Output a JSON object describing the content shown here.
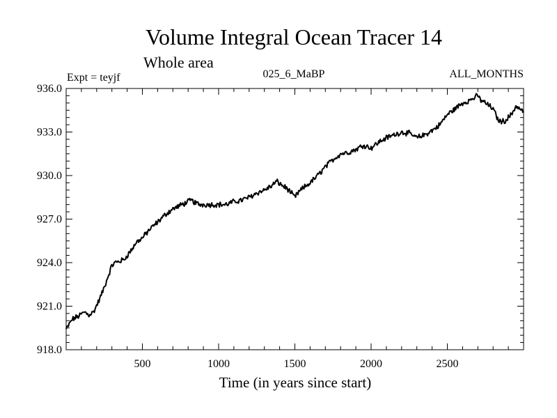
{
  "chart_data": {
    "type": "line",
    "title": "Volume Integral Ocean Tracer 14",
    "subtitle": "Whole area",
    "expt_label": "Expt = teyjf",
    "run_label": "025_6_MaBP",
    "period_label": "ALL_MONTHS",
    "xlabel": "Time (in years since start)",
    "ylabel": "",
    "xlim": [
      0,
      3000
    ],
    "ylim": [
      918.0,
      936.0
    ],
    "x_ticks": [
      500,
      1000,
      1500,
      2000,
      2500
    ],
    "x_tick_labels": [
      "500",
      "1000",
      "1500",
      "2000",
      "2500"
    ],
    "y_ticks": [
      918.0,
      921.0,
      924.0,
      927.0,
      930.0,
      933.0,
      936.0
    ],
    "y_tick_labels": [
      "918.0",
      "921.0",
      "924.0",
      "927.0",
      "930.0",
      "933.0",
      "936.0"
    ],
    "grid": false,
    "series": [
      {
        "name": "Tracer 14",
        "x": [
          0,
          40,
          80,
          120,
          150,
          180,
          220,
          250,
          280,
          300,
          320,
          350,
          380,
          400,
          430,
          460,
          500,
          540,
          580,
          620,
          660,
          700,
          740,
          780,
          820,
          850,
          880,
          920,
          960,
          1000,
          1050,
          1100,
          1150,
          1200,
          1250,
          1300,
          1350,
          1380,
          1420,
          1450,
          1500,
          1520,
          1550,
          1600,
          1650,
          1700,
          1750,
          1800,
          1850,
          1900,
          1950,
          2000,
          2050,
          2100,
          2150,
          2200,
          2250,
          2300,
          2350,
          2400,
          2450,
          2500,
          2550,
          2600,
          2650,
          2700,
          2720,
          2750,
          2800,
          2830,
          2850,
          2880,
          2920,
          2950,
          3000
        ],
        "values": [
          919.4,
          920.1,
          920.3,
          920.6,
          920.4,
          920.6,
          921.5,
          922.3,
          923.2,
          923.8,
          924.0,
          924.1,
          924.2,
          924.5,
          924.9,
          925.4,
          925.7,
          926.2,
          926.6,
          927.0,
          927.4,
          927.7,
          927.9,
          928.1,
          928.3,
          928.1,
          928.0,
          928.0,
          928.0,
          928.0,
          928.0,
          928.2,
          928.3,
          928.5,
          928.8,
          929.0,
          929.3,
          929.6,
          929.3,
          929.1,
          928.5,
          928.8,
          929.1,
          929.5,
          930.0,
          930.6,
          931.1,
          931.5,
          931.6,
          931.8,
          932.1,
          931.9,
          932.3,
          932.6,
          932.8,
          933.0,
          932.9,
          932.6,
          932.8,
          933.1,
          933.5,
          934.2,
          934.6,
          935.0,
          935.2,
          935.5,
          935.2,
          935.0,
          934.6,
          933.9,
          933.7,
          933.8,
          934.2,
          934.8,
          934.4
        ]
      }
    ]
  }
}
